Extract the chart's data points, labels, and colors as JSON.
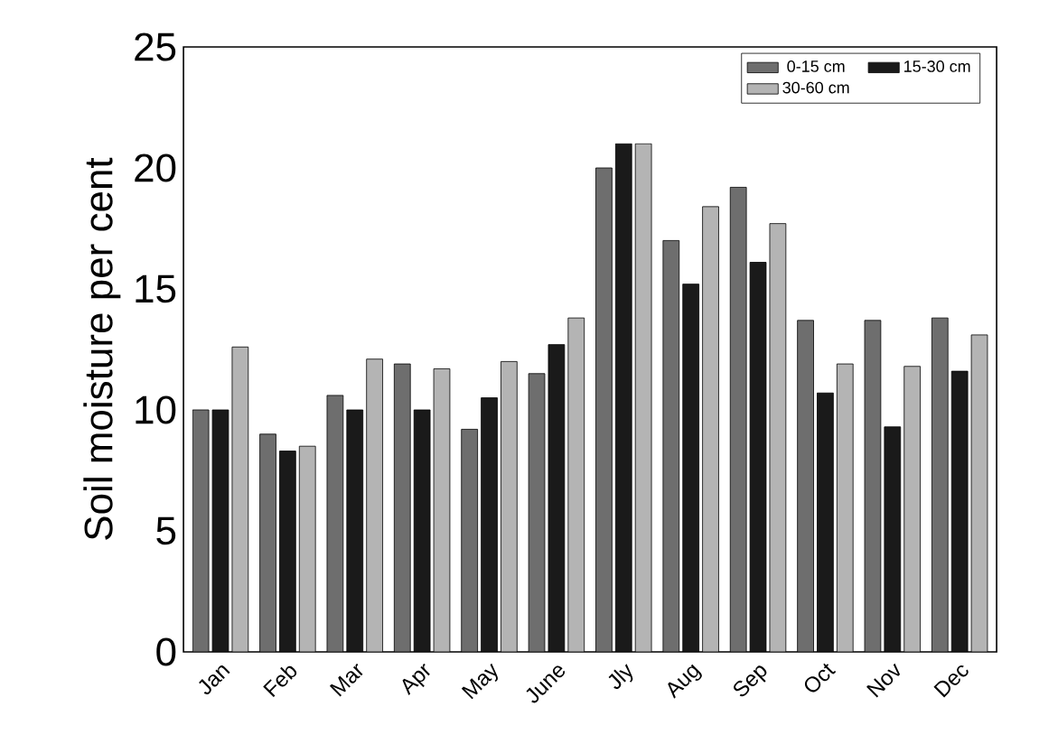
{
  "chart_data": {
    "type": "bar",
    "ylabel": "Soil moisture per cent",
    "categories": [
      "Jan",
      "Feb",
      "Mar",
      "Apr",
      "May",
      "June",
      "Jly",
      "Aug",
      "Sep",
      "Oct",
      "Nov",
      "Dec"
    ],
    "series": [
      {
        "name": "0-15 cm",
        "color": "#6e6e6e",
        "values": [
          10.0,
          9.0,
          10.6,
          11.9,
          9.2,
          11.5,
          20.0,
          17.0,
          19.2,
          13.7,
          13.7,
          13.8
        ]
      },
      {
        "name": "15-30 cm",
        "color": "#1a1a1a",
        "values": [
          10.0,
          8.3,
          10.0,
          10.0,
          10.5,
          12.7,
          21.0,
          15.2,
          16.1,
          10.7,
          9.3,
          11.6
        ]
      },
      {
        "name": "30-60 cm",
        "color": "#b4b4b4",
        "values": [
          12.6,
          8.5,
          12.1,
          11.7,
          12.0,
          13.8,
          21.0,
          18.4,
          17.7,
          11.9,
          11.8,
          13.1
        ]
      }
    ],
    "ylim": [
      0,
      25
    ],
    "yticks": [
      0,
      5,
      10,
      15,
      20,
      25
    ],
    "grid": false,
    "legend": "top right"
  }
}
